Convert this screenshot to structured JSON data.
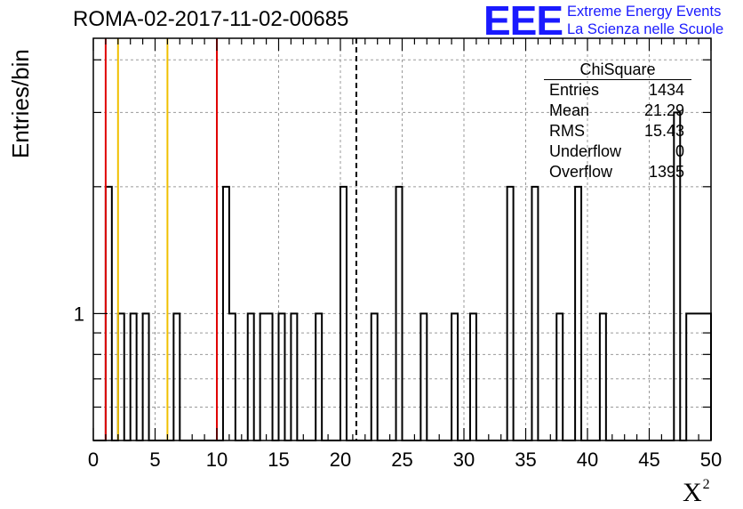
{
  "header": {
    "title": "ROMA-02-2017-11-02-00685",
    "logo_text": "EEE",
    "logo_line1": "Extreme Energy Events",
    "logo_line2": "La Scienza nelle Scuole",
    "accent_color": "#1a1aff"
  },
  "stats_box": {
    "title": "ChiSquare",
    "rows": [
      {
        "name": "Entries",
        "value": "1434"
      },
      {
        "name": "Mean",
        "value": "21.29"
      },
      {
        "name": "RMS",
        "value": "15.43"
      },
      {
        "name": "Underflow",
        "value": "0"
      },
      {
        "name": "Overflow",
        "value": "1395"
      }
    ]
  },
  "chart_data": {
    "type": "histogram",
    "xlabel": "X",
    "xlabel_superscript": "2",
    "ylabel": "Entries/bin",
    "xlim": [
      0,
      50
    ],
    "ylim": [
      0.5,
      4.5
    ],
    "y_scale": "log",
    "bin_width": 0.5,
    "x_ticks": [
      "0",
      "5",
      "10",
      "15",
      "20",
      "25",
      "30",
      "35",
      "40",
      "45",
      "50"
    ],
    "y_ticks": [
      "1"
    ],
    "grid": true,
    "bins": [
      {
        "x": 1.0,
        "y": 2
      },
      {
        "x": 2.0,
        "y": 1
      },
      {
        "x": 3.0,
        "y": 1
      },
      {
        "x": 4.0,
        "y": 1
      },
      {
        "x": 6.5,
        "y": 1
      },
      {
        "x": 10.5,
        "y": 2
      },
      {
        "x": 11.0,
        "y": 1
      },
      {
        "x": 12.5,
        "y": 1
      },
      {
        "x": 13.5,
        "y": 1
      },
      {
        "x": 14.0,
        "y": 1
      },
      {
        "x": 15.0,
        "y": 1
      },
      {
        "x": 16.0,
        "y": 1
      },
      {
        "x": 18.0,
        "y": 1
      },
      {
        "x": 20.0,
        "y": 2
      },
      {
        "x": 22.5,
        "y": 1
      },
      {
        "x": 24.5,
        "y": 2
      },
      {
        "x": 26.5,
        "y": 1
      },
      {
        "x": 29.0,
        "y": 1
      },
      {
        "x": 30.5,
        "y": 1
      },
      {
        "x": 33.5,
        "y": 2
      },
      {
        "x": 35.5,
        "y": 2
      },
      {
        "x": 37.5,
        "y": 1
      },
      {
        "x": 39.0,
        "y": 2
      },
      {
        "x": 41.0,
        "y": 1
      },
      {
        "x": 47.0,
        "y": 3
      },
      {
        "x": 48.0,
        "y": 1
      },
      {
        "x": 48.5,
        "y": 1
      },
      {
        "x": 49.0,
        "y": 1
      },
      {
        "x": 49.5,
        "y": 1
      }
    ],
    "vertical_lines": [
      {
        "x": 1,
        "color": "#e00000",
        "style": "solid"
      },
      {
        "x": 2,
        "color": "#f0c000",
        "style": "solid"
      },
      {
        "x": 6,
        "color": "#f0c000",
        "style": "solid"
      },
      {
        "x": 10,
        "color": "#e00000",
        "style": "solid"
      },
      {
        "x": 21.29,
        "color": "#000000",
        "style": "dashed"
      }
    ]
  }
}
